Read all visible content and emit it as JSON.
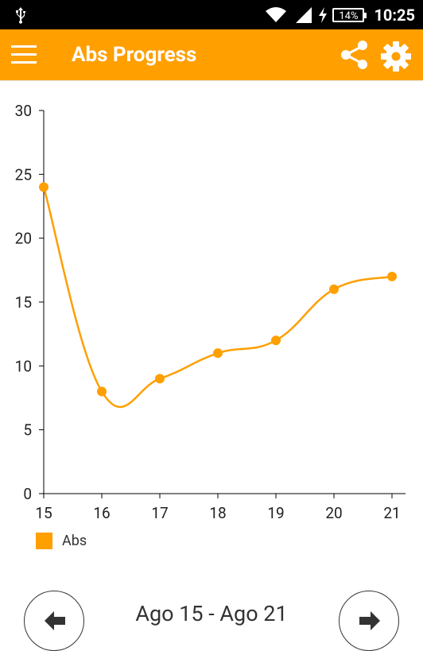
{
  "status_bar": {
    "time": "10:25",
    "battery": "14%"
  },
  "app_bar": {
    "title": "Abs Progress"
  },
  "colors": {
    "accent": "#ff9f00"
  },
  "icons": {
    "menu": "hamburger-menu-icon",
    "share": "share-icon",
    "settings": "gear-icon",
    "prev": "arrow-left-icon",
    "next": "arrow-right-icon"
  },
  "chart_data": {
    "type": "line",
    "x": [
      15,
      16,
      17,
      18,
      19,
      20,
      21
    ],
    "series": [
      {
        "name": "Abs",
        "values": [
          24,
          8,
          9,
          11,
          12,
          16,
          17
        ]
      }
    ],
    "yticks": [
      0,
      5,
      10,
      15,
      20,
      25,
      30
    ],
    "ylim": [
      0,
      30
    ],
    "xlim": [
      15,
      21
    ],
    "title": "",
    "xlabel": "",
    "ylabel": "",
    "legend": "bottom-left",
    "grid": false,
    "curve": "smooth"
  },
  "date_range": "Ago 15 - Ago 21"
}
